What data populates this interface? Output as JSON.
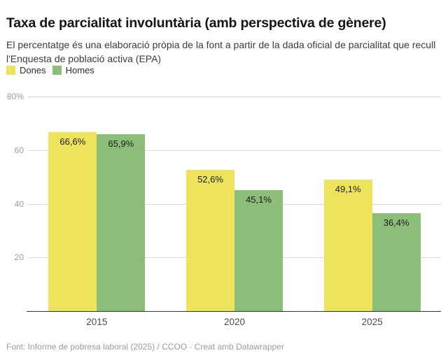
{
  "header": {
    "title": "Taxa de parcialitat involuntària (amb perspectiva de gènere)",
    "subtitle": "El percentatge és una elaboració pròpia de la font a partir de la dada oficial de parcialitat que recull l'Enquesta de població activa (EPA)"
  },
  "chart_data": {
    "type": "bar",
    "title": "Taxa de parcialitat involuntària (amb perspectiva de gènere)",
    "categories": [
      "2015",
      "2020",
      "2025"
    ],
    "series": [
      {
        "name": "Dones",
        "color": "#EDE45C",
        "values": [
          66.6,
          52.6,
          49.1
        ],
        "labels": [
          "66,6%",
          "52,6%",
          "49,1%"
        ]
      },
      {
        "name": "Homes",
        "color": "#8CBD79",
        "values": [
          65.9,
          45.1,
          36.4
        ],
        "labels": [
          "65,9%",
          "45,1%",
          "36,4%"
        ]
      }
    ],
    "xlabel": "",
    "ylabel": "",
    "ylim": [
      0,
      80
    ],
    "yticks": [
      {
        "value": 20,
        "label": "20"
      },
      {
        "value": 40,
        "label": "40"
      },
      {
        "value": 60,
        "label": "60"
      },
      {
        "value": 80,
        "label": "80%"
      }
    ],
    "grid": true,
    "legend_position": "top"
  },
  "colors": {
    "dones": "#EDE45C",
    "homes": "#8CBD79",
    "gridline": "#dadada",
    "axis_line": "#333333",
    "tick_text": "#9d9d9d",
    "title_text": "#151515"
  },
  "footer": {
    "text": "Font: Informe de pobresa laboral (2025) / CCOO · Creat amb Datawrapper"
  }
}
